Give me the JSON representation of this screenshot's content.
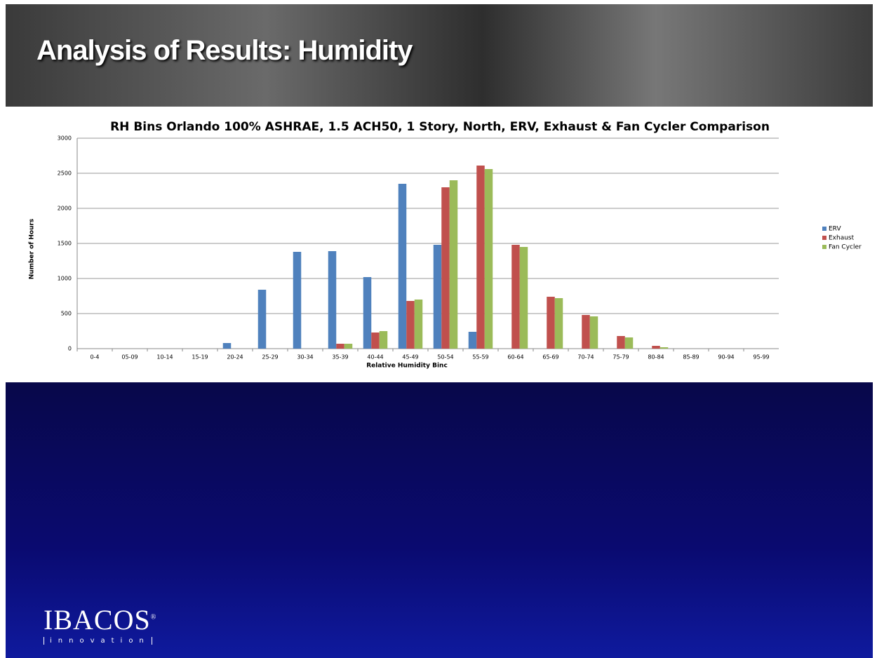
{
  "slide": {
    "title": "Analysis of Results: Humidity"
  },
  "logo": {
    "name": "IBACOS",
    "mark": "®",
    "tagline": "innovation"
  },
  "chart_data": {
    "type": "bar",
    "title": "RH Bins Orlando 100% ASHRAE, 1.5 ACH50, 1 Story, North, ERV, Exhaust & Fan Cycler Comparison",
    "x_label": "Relative Humidity Binc",
    "y_label": "Number of Hours",
    "categories": [
      "0-4",
      "05-09",
      "10-14",
      "15-19",
      "20-24",
      "25-29",
      "30-34",
      "35-39",
      "40-44",
      "45-49",
      "50-54",
      "55-59",
      "60-64",
      "65-69",
      "70-74",
      "75-79",
      "80-84",
      "85-89",
      "90-94",
      "95-99"
    ],
    "series": [
      {
        "name": "ERV",
        "color": "#4f81bd",
        "values": [
          0,
          0,
          0,
          0,
          80,
          840,
          1380,
          1390,
          1020,
          2350,
          1480,
          240,
          0,
          0,
          0,
          0,
          0,
          0,
          0,
          0
        ]
      },
      {
        "name": "Exhaust",
        "color": "#c0504d",
        "values": [
          0,
          0,
          0,
          0,
          0,
          0,
          0,
          70,
          230,
          680,
          2300,
          2610,
          1480,
          740,
          480,
          180,
          40,
          0,
          0,
          0
        ]
      },
      {
        "name": "Fan Cycler",
        "color": "#9bbb59",
        "values": [
          0,
          0,
          0,
          0,
          0,
          0,
          0,
          70,
          250,
          700,
          2400,
          2560,
          1450,
          720,
          460,
          160,
          20,
          0,
          0,
          0
        ]
      }
    ],
    "ylim": [
      0,
      3000
    ],
    "yticks": [
      0,
      500,
      1000,
      1500,
      2000,
      2500,
      3000
    ],
    "grid": true,
    "legend": "right"
  }
}
